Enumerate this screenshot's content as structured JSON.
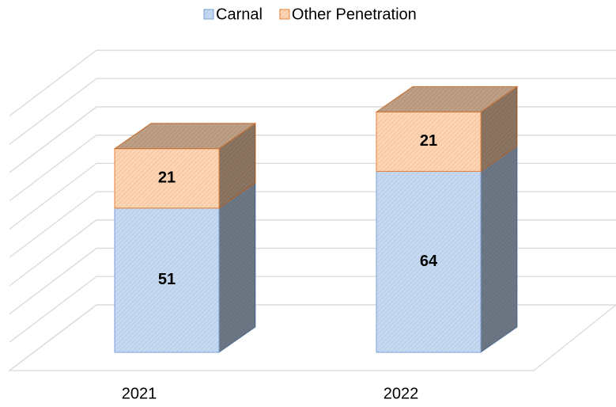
{
  "chart_data": {
    "type": "bar3d_stacked",
    "categories": [
      "2021",
      "2022"
    ],
    "series": [
      {
        "name": "Carnal",
        "color": "#c6d9f1",
        "values": [
          51,
          64
        ]
      },
      {
        "name": "Other Penetration",
        "color": "#fbd5b5",
        "values": [
          21,
          21
        ]
      }
    ],
    "ylim": [
      0,
      90
    ],
    "yticks": [
      0,
      10,
      20,
      30,
      40,
      50,
      60,
      70,
      80,
      90
    ],
    "grid": true,
    "legend": "top"
  }
}
